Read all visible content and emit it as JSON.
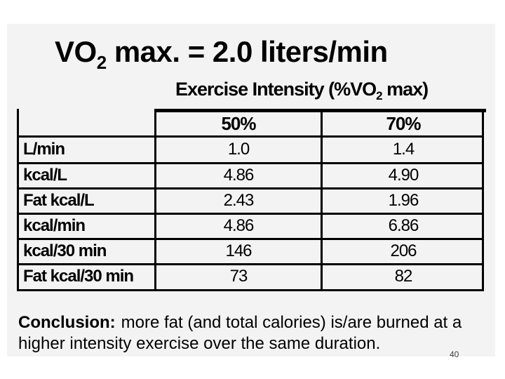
{
  "slide": {
    "title_main": "VO",
    "title_sub": "2",
    "title_rest": " max. = 2.0 liters/min",
    "subtitle_main": "Exercise Intensity (%VO",
    "subtitle_sub": "2",
    "subtitle_rest": " max)",
    "page_number": "40"
  },
  "table": {
    "columns": [
      "50%",
      "70%"
    ],
    "rows": [
      {
        "label": "L/min",
        "values": [
          "1.0",
          "1.4"
        ]
      },
      {
        "label": "kcal/L",
        "values": [
          "4.86",
          "4.90"
        ]
      },
      {
        "label": "Fat kcal/L",
        "values": [
          "2.43",
          "1.96"
        ]
      },
      {
        "label": "kcal/min",
        "values": [
          "4.86",
          "6.86"
        ]
      },
      {
        "label": "kcal/30 min",
        "values": [
          "146",
          "206"
        ]
      },
      {
        "label": "Fat kcal/30 min",
        "values": [
          "73",
          "82"
        ]
      }
    ]
  },
  "conclusion": {
    "label": "Conclusion:",
    "text": "more fat (and total calories) is/are burned at a higher intensity exercise over the same duration."
  }
}
